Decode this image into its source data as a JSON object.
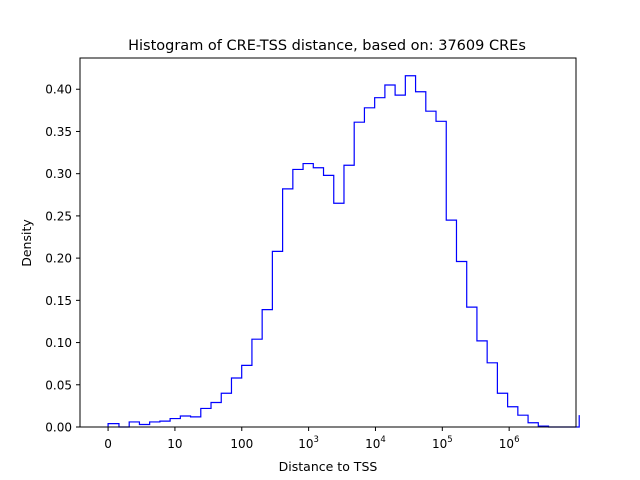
{
  "chart_data": {
    "type": "histogram",
    "title": "Histogram of CRE-TSS distance, based on: 37609 CREs",
    "xlabel": "Distance to TSS",
    "ylabel": "Density",
    "ylim": [
      0,
      0.437
    ],
    "xlim": [
      -0.42,
      7.0
    ],
    "x_scale": "symlog",
    "grid": false,
    "series": [
      {
        "color": "#0000ff",
        "style": "step"
      }
    ],
    "x_ticks": [
      {
        "pos": 0,
        "base": "0",
        "exp": ""
      },
      {
        "pos": 1,
        "base": "10",
        "exp": ""
      },
      {
        "pos": 2,
        "base": "100",
        "exp": ""
      },
      {
        "pos": 3,
        "base": "10",
        "exp": "3"
      },
      {
        "pos": 4,
        "base": "10",
        "exp": "4"
      },
      {
        "pos": 5,
        "base": "10",
        "exp": "5"
      },
      {
        "pos": 6,
        "base": "10",
        "exp": "6"
      }
    ],
    "y_ticks": [
      "0.00",
      "0.05",
      "0.10",
      "0.15",
      "0.20",
      "0.25",
      "0.30",
      "0.35",
      "0.40"
    ],
    "y_tick_values": [
      0,
      0.05,
      0.1,
      0.15,
      0.2,
      0.25,
      0.3,
      0.35,
      0.4
    ],
    "bin_edges": [
      0,
      0.163,
      0.316,
      0.469,
      0.622,
      0.775,
      0.928,
      1.081,
      1.234,
      1.387,
      1.54,
      1.693,
      1.846,
      1.999,
      2.152,
      2.305,
      2.458,
      2.611,
      2.764,
      2.917,
      3.07,
      3.223,
      3.376,
      3.529,
      3.682,
      3.835,
      3.988,
      4.141,
      4.294,
      4.447,
      4.6,
      4.753,
      4.906,
      5.059,
      5.212,
      5.365,
      5.518,
      5.671,
      5.824,
      5.977,
      6.13,
      6.283,
      6.436,
      6.589,
      6.742,
      6.895,
      7.048
    ],
    "values": [
      0.004,
      0.0,
      0.006,
      0.003,
      0.006,
      0.007,
      0.01,
      0.013,
      0.012,
      0.022,
      0.029,
      0.04,
      0.058,
      0.073,
      0.104,
      0.139,
      0.208,
      0.282,
      0.305,
      0.312,
      0.307,
      0.298,
      0.265,
      0.31,
      0.361,
      0.378,
      0.39,
      0.405,
      0.393,
      0.416,
      0.397,
      0.374,
      0.362,
      0.245,
      0.196,
      0.142,
      0.102,
      0.076,
      0.04,
      0.024,
      0.014,
      0.005,
      0.001,
      0.0,
      0.0,
      0.0,
      0.014
    ]
  }
}
